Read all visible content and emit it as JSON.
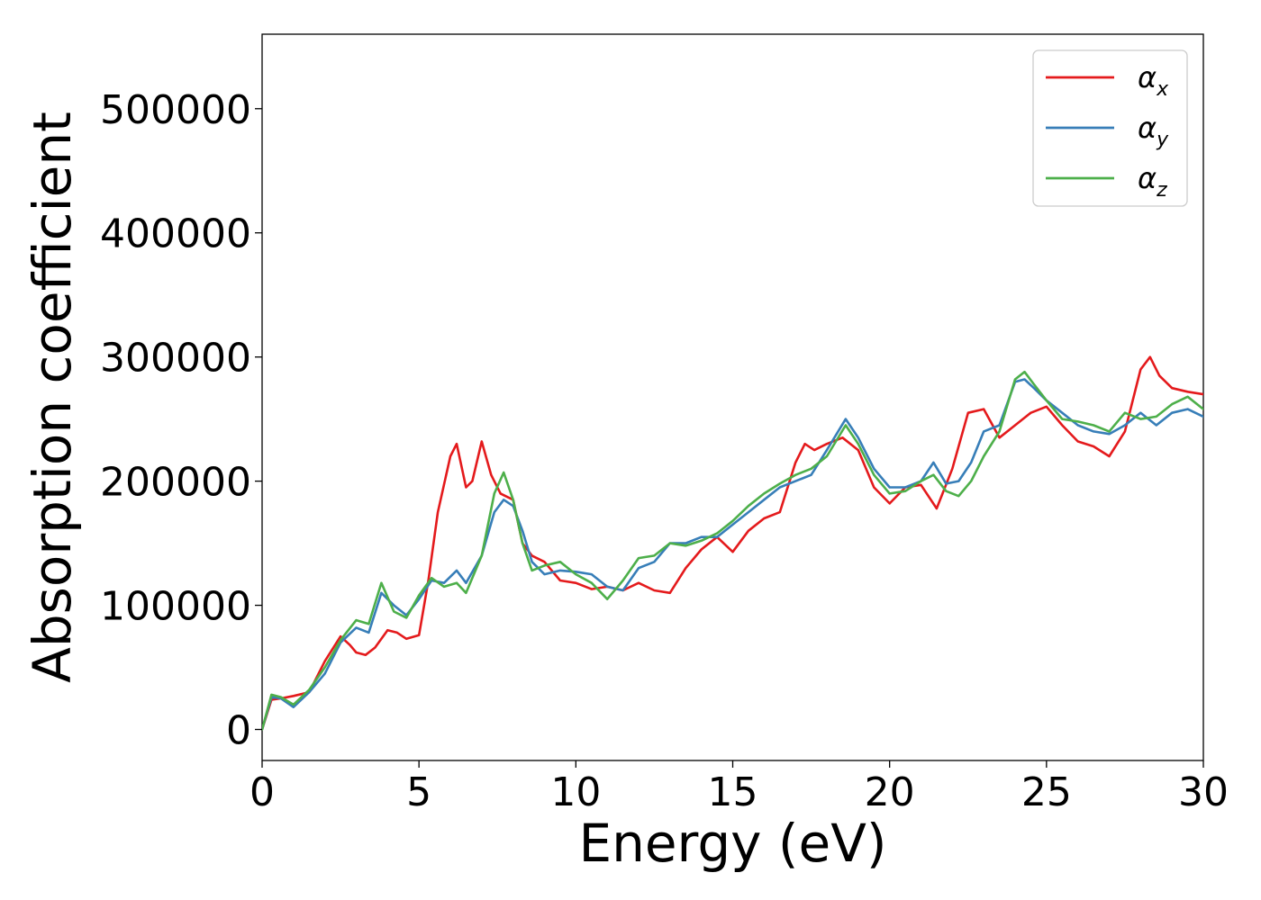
{
  "chart_data": {
    "type": "line",
    "xlabel": "Energy (eV)",
    "ylabel": "Absorption coefficient",
    "xlim": [
      0,
      30
    ],
    "ylim": [
      -25000,
      560000
    ],
    "xticks": [
      0,
      5,
      10,
      15,
      20,
      25,
      30
    ],
    "yticks": [
      0,
      100000,
      200000,
      300000,
      400000,
      500000
    ],
    "grid": false,
    "legend_position": "top-right",
    "series": [
      {
        "name": "α",
        "subscript": "x",
        "color": "#e41a1c",
        "x": [
          0,
          0.3,
          0.6,
          1.0,
          1.5,
          2.0,
          2.5,
          2.8,
          3.0,
          3.3,
          3.6,
          4.0,
          4.3,
          4.6,
          5.0,
          5.3,
          5.6,
          6.0,
          6.2,
          6.5,
          6.7,
          7.0,
          7.3,
          7.6,
          8.0,
          8.3,
          8.6,
          9.0,
          9.5,
          10.0,
          10.5,
          11.0,
          11.5,
          12.0,
          12.5,
          13.0,
          13.5,
          14.0,
          14.5,
          15.0,
          15.5,
          16.0,
          16.5,
          17.0,
          17.3,
          17.6,
          18.0,
          18.5,
          19.0,
          19.5,
          20.0,
          20.5,
          21.0,
          21.5,
          22.0,
          22.5,
          23.0,
          23.5,
          24.0,
          24.5,
          25.0,
          25.5,
          26.0,
          26.5,
          27.0,
          27.5,
          28.0,
          28.3,
          28.6,
          29.0,
          29.5,
          30.0
        ],
        "y": [
          0,
          24000,
          25000,
          27000,
          30000,
          55000,
          75000,
          68000,
          62000,
          60000,
          66000,
          80000,
          78000,
          73000,
          76000,
          120000,
          175000,
          220000,
          230000,
          195000,
          200000,
          232000,
          205000,
          190000,
          185000,
          150000,
          140000,
          135000,
          120000,
          118000,
          113000,
          115000,
          112000,
          118000,
          112000,
          110000,
          130000,
          145000,
          155000,
          143000,
          160000,
          170000,
          175000,
          215000,
          230000,
          225000,
          230000,
          235000,
          225000,
          195000,
          182000,
          195000,
          197000,
          178000,
          210000,
          255000,
          258000,
          235000,
          245000,
          255000,
          260000,
          245000,
          232000,
          228000,
          220000,
          240000,
          290000,
          300000,
          285000,
          275000,
          272000,
          270000
        ]
      },
      {
        "name": "α",
        "subscript": "y",
        "color": "#377eb8",
        "x": [
          0,
          0.3,
          0.6,
          1.0,
          1.5,
          2.0,
          2.5,
          3.0,
          3.4,
          3.8,
          4.2,
          4.6,
          5.0,
          5.4,
          5.8,
          6.2,
          6.5,
          7.0,
          7.4,
          7.7,
          8.0,
          8.3,
          8.6,
          9.0,
          9.5,
          10.0,
          10.5,
          11.0,
          11.5,
          12.0,
          12.5,
          13.0,
          13.5,
          14.0,
          14.5,
          15.0,
          15.5,
          16.0,
          16.5,
          17.0,
          17.5,
          18.0,
          18.6,
          19.0,
          19.5,
          20.0,
          20.5,
          21.0,
          21.4,
          21.8,
          22.2,
          22.6,
          23.0,
          23.5,
          24.0,
          24.3,
          24.6,
          25.0,
          25.5,
          26.0,
          26.5,
          27.0,
          27.5,
          28.0,
          28.5,
          29.0,
          29.5,
          30.0
        ],
        "y": [
          0,
          26000,
          25000,
          18000,
          30000,
          45000,
          70000,
          82000,
          78000,
          110000,
          100000,
          92000,
          105000,
          120000,
          118000,
          128000,
          118000,
          140000,
          175000,
          185000,
          180000,
          160000,
          135000,
          125000,
          128000,
          127000,
          125000,
          115000,
          112000,
          130000,
          135000,
          150000,
          150000,
          155000,
          155000,
          165000,
          175000,
          185000,
          195000,
          200000,
          205000,
          225000,
          250000,
          235000,
          210000,
          195000,
          195000,
          200000,
          215000,
          198000,
          200000,
          215000,
          240000,
          245000,
          280000,
          282000,
          275000,
          265000,
          255000,
          245000,
          240000,
          238000,
          245000,
          255000,
          245000,
          255000,
          258000,
          252000
        ]
      },
      {
        "name": "α",
        "subscript": "z",
        "color": "#4daf4a",
        "x": [
          0,
          0.3,
          0.6,
          1.0,
          1.5,
          2.0,
          2.5,
          3.0,
          3.4,
          3.8,
          4.2,
          4.6,
          5.0,
          5.4,
          5.8,
          6.2,
          6.5,
          7.0,
          7.4,
          7.7,
          8.0,
          8.3,
          8.6,
          9.0,
          9.5,
          10.0,
          10.5,
          11.0,
          11.5,
          12.0,
          12.5,
          13.0,
          13.5,
          14.0,
          14.5,
          15.0,
          15.5,
          16.0,
          16.5,
          17.0,
          17.5,
          18.0,
          18.6,
          19.0,
          19.5,
          20.0,
          20.5,
          21.0,
          21.4,
          21.8,
          22.2,
          22.6,
          23.0,
          23.5,
          24.0,
          24.3,
          24.6,
          25.0,
          25.5,
          26.0,
          26.5,
          27.0,
          27.5,
          28.0,
          28.5,
          29.0,
          29.5,
          30.0
        ],
        "y": [
          0,
          28000,
          26000,
          20000,
          32000,
          50000,
          72000,
          88000,
          85000,
          118000,
          95000,
          90000,
          108000,
          122000,
          115000,
          118000,
          110000,
          140000,
          190000,
          207000,
          185000,
          150000,
          128000,
          132000,
          135000,
          125000,
          118000,
          105000,
          120000,
          138000,
          140000,
          150000,
          148000,
          152000,
          158000,
          168000,
          180000,
          190000,
          198000,
          205000,
          210000,
          220000,
          245000,
          230000,
          205000,
          190000,
          192000,
          200000,
          205000,
          192000,
          188000,
          200000,
          220000,
          240000,
          282000,
          288000,
          278000,
          265000,
          250000,
          248000,
          245000,
          240000,
          255000,
          250000,
          252000,
          262000,
          268000,
          258000
        ]
      }
    ]
  }
}
